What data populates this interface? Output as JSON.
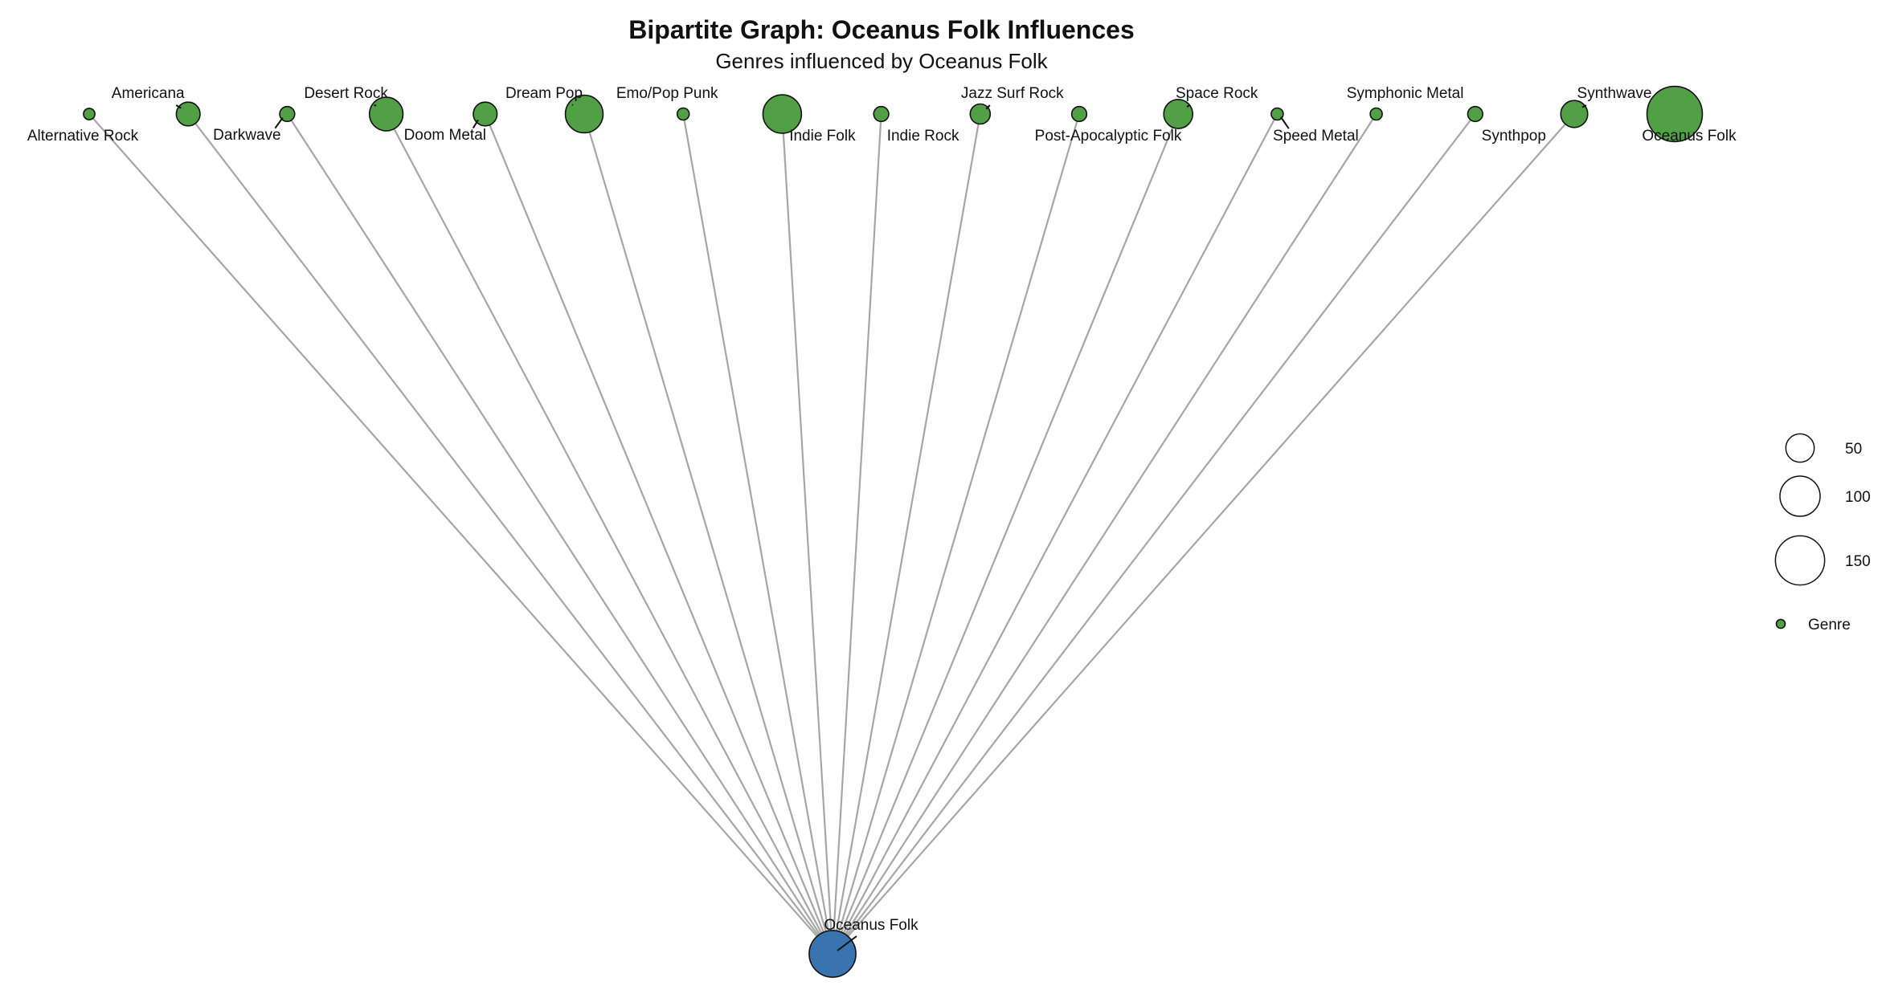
{
  "title": "Bipartite Graph: Oceanus Folk Influences",
  "subtitle": "Genres influenced by Oceanus Folk",
  "colors": {
    "genre": "#52a045",
    "source": "#3a74b0",
    "edge": "#a6a6a6"
  },
  "source_node": {
    "name": "Oceanus Folk",
    "size": 135
  },
  "genre_nodes": [
    {
      "name": "Alternative Rock",
      "size": 8
    },
    {
      "name": "Americana",
      "size": 35
    },
    {
      "name": "Darkwave",
      "size": 14
    },
    {
      "name": "Desert Rock",
      "size": 70
    },
    {
      "name": "Doom Metal",
      "size": 35
    },
    {
      "name": "Dream Pop",
      "size": 88
    },
    {
      "name": "Emo/Pop Punk",
      "size": 9
    },
    {
      "name": "Indie Folk",
      "size": 92
    },
    {
      "name": "Indie Rock",
      "size": 14
    },
    {
      "name": "Jazz Surf Rock",
      "size": 25
    },
    {
      "name": "Post-Apocalyptic Folk",
      "size": 14
    },
    {
      "name": "Space Rock",
      "size": 52
    },
    {
      "name": "Speed Metal",
      "size": 9
    },
    {
      "name": "Symphonic Metal",
      "size": 9
    },
    {
      "name": "Synthpop",
      "size": 14
    },
    {
      "name": "Synthwave",
      "size": 45
    },
    {
      "name": "Oceanus Folk",
      "size": 190
    }
  ],
  "edges": [
    "Alternative Rock",
    "Americana",
    "Darkwave",
    "Desert Rock",
    "Doom Metal",
    "Dream Pop",
    "Emo/Pop Punk",
    "Indie Folk",
    "Indie Rock",
    "Jazz Surf Rock",
    "Post-Apocalyptic Folk",
    "Space Rock",
    "Speed Metal",
    "Symphonic Metal",
    "Synthpop",
    "Synthwave"
  ],
  "legend": {
    "sizes": [
      {
        "value": 50,
        "label": "50"
      },
      {
        "value": 100,
        "label": "100"
      },
      {
        "value": 150,
        "label": "150"
      }
    ],
    "type_label": "Genre"
  }
}
